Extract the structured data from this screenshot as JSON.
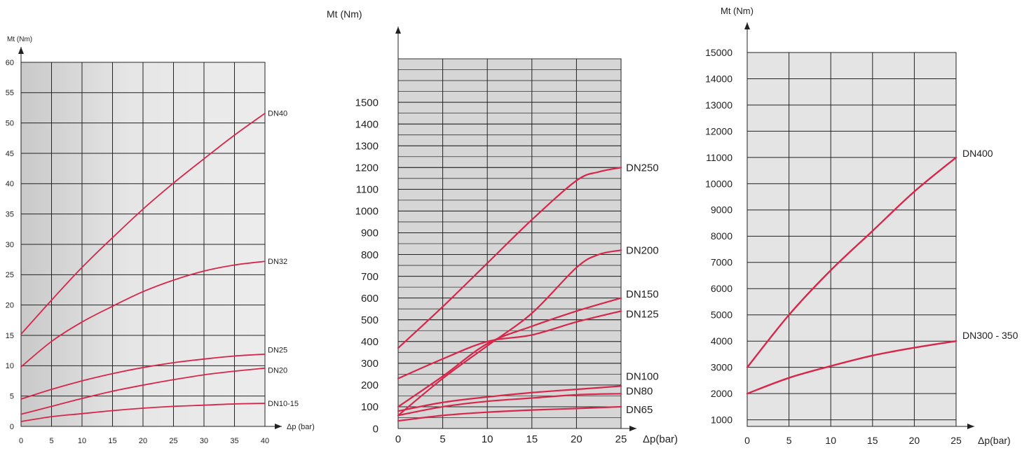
{
  "chart_data": [
    {
      "type": "line",
      "title": "",
      "ylabel": "Mt (Nm)",
      "xlabel": "Δp (bar)",
      "xlim": [
        0,
        40
      ],
      "ylim": [
        0,
        60
      ],
      "x_ticks": [
        0,
        5,
        10,
        15,
        20,
        25,
        30,
        35,
        40
      ],
      "x_tick_labels": [
        "0",
        "5",
        "10",
        "15",
        "20",
        "25",
        "30",
        "35",
        "40"
      ],
      "y_ticks": [
        0,
        5,
        10,
        15,
        20,
        25,
        30,
        35,
        40,
        45,
        50,
        55,
        60
      ],
      "y_tick_labels": [
        "0",
        "5",
        "10",
        "15",
        "20",
        "25",
        "30",
        "35",
        "40",
        "45",
        "50",
        "55",
        "60"
      ],
      "grid": true,
      "series": [
        {
          "name": "DN40",
          "x": [
            0,
            5,
            10,
            15,
            20,
            25,
            30,
            35,
            40
          ],
          "values": [
            15.2,
            20.8,
            26.2,
            31.1,
            35.8,
            40.1,
            44.1,
            48.0,
            51.6
          ]
        },
        {
          "name": "DN32",
          "x": [
            0,
            5,
            10,
            15,
            20,
            25,
            30,
            35,
            40
          ],
          "values": [
            9.8,
            14.0,
            17.2,
            19.8,
            22.2,
            24.1,
            25.6,
            26.6,
            27.2
          ]
        },
        {
          "name": "DN25",
          "x": [
            0,
            5,
            10,
            15,
            20,
            25,
            30,
            35,
            40
          ],
          "values": [
            4.5,
            6.1,
            7.5,
            8.7,
            9.7,
            10.5,
            11.1,
            11.6,
            11.9
          ]
        },
        {
          "name": "DN20",
          "x": [
            0,
            5,
            10,
            15,
            20,
            25,
            30,
            35,
            40
          ],
          "values": [
            2.0,
            3.3,
            4.6,
            5.8,
            6.8,
            7.7,
            8.5,
            9.1,
            9.6
          ]
        },
        {
          "name": "DN10-15",
          "x": [
            0,
            5,
            10,
            15,
            20,
            25,
            30,
            35,
            40
          ],
          "values": [
            0.8,
            1.6,
            2.1,
            2.6,
            3.0,
            3.3,
            3.5,
            3.7,
            3.8
          ]
        }
      ]
    },
    {
      "type": "line",
      "title": "",
      "ylabel": "Mt (Nm)",
      "xlabel": "Δp(bar)",
      "xlim": [
        0,
        25
      ],
      "ylim": [
        0,
        1700
      ],
      "x_ticks": [
        0,
        5,
        10,
        15,
        20,
        25
      ],
      "x_tick_labels": [
        "0",
        "5",
        "10",
        "15",
        "20",
        "25"
      ],
      "y_ticks": [
        0,
        100,
        200,
        300,
        400,
        500,
        600,
        700,
        800,
        900,
        1000,
        1100,
        1200,
        1300,
        1400,
        1500
      ],
      "y_tick_labels": [
        "0",
        "100",
        "200",
        "300",
        "400",
        "500",
        "600",
        "700",
        "800",
        "900",
        "1000",
        "1100",
        "1200",
        "1300",
        "1400",
        "1500"
      ],
      "grid": true,
      "series": [
        {
          "name": "DN250",
          "x": [
            0,
            5,
            10,
            15,
            20,
            22.5,
            25
          ],
          "values": [
            370,
            560,
            760,
            960,
            1140,
            1180,
            1200
          ]
        },
        {
          "name": "DN200",
          "x": [
            0,
            5,
            10,
            15,
            20,
            22.5,
            25
          ],
          "values": [
            60,
            230,
            380,
            530,
            740,
            800,
            820
          ]
        },
        {
          "name": "DN150",
          "x": [
            0,
            5,
            10,
            15,
            20,
            25
          ],
          "values": [
            100,
            240,
            390,
            470,
            540,
            600
          ]
        },
        {
          "name": "DN125",
          "x": [
            0,
            5,
            10,
            15,
            20,
            25
          ],
          "values": [
            230,
            320,
            400,
            430,
            490,
            540
          ]
        },
        {
          "name": "DN100",
          "x": [
            0,
            5,
            10,
            15,
            20,
            25
          ],
          "values": [
            80,
            120,
            145,
            165,
            180,
            195
          ]
        },
        {
          "name": "DN80",
          "x": [
            0,
            5,
            10,
            15,
            20,
            25
          ],
          "values": [
            60,
            100,
            125,
            140,
            155,
            160
          ]
        },
        {
          "name": "DN65",
          "x": [
            0,
            5,
            10,
            15,
            20,
            25
          ],
          "values": [
            35,
            60,
            75,
            85,
            92,
            100
          ]
        }
      ]
    },
    {
      "type": "line",
      "title": "",
      "ylabel": "Mt (Nm)",
      "xlabel": "Δp(bar)",
      "xlim": [
        0,
        25
      ],
      "ylim": [
        750,
        15000
      ],
      "x_ticks": [
        0,
        5,
        10,
        15,
        20,
        25
      ],
      "x_tick_labels": [
        "0",
        "5",
        "10",
        "15",
        "20",
        "25"
      ],
      "y_ticks": [
        1000,
        2000,
        3000,
        4000,
        5000,
        6000,
        7000,
        8000,
        9000,
        10000,
        11000,
        12000,
        13000,
        14000,
        15000
      ],
      "y_tick_labels": [
        "1000",
        "2000",
        "3000",
        "4000",
        "5000",
        "6000",
        "7000",
        "8000",
        "9000",
        "10000",
        "11000",
        "12000",
        "13000",
        "14000",
        "15000"
      ],
      "grid": true,
      "series": [
        {
          "name": "DN400",
          "x": [
            0,
            5,
            10,
            15,
            20,
            25
          ],
          "values": [
            3000,
            5000,
            6700,
            8200,
            9700,
            11000
          ]
        },
        {
          "name": "DN300 - 350",
          "x": [
            0,
            5,
            10,
            15,
            20,
            25
          ],
          "values": [
            2000,
            2600,
            3050,
            3450,
            3750,
            4000
          ]
        }
      ]
    }
  ]
}
